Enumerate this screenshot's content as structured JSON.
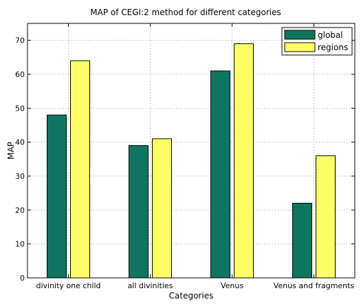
{
  "chart_data": {
    "type": "bar",
    "title": "MAP of CEGI:2 method for different categories",
    "xlabel": "Categories",
    "ylabel": "MAP",
    "categories": [
      "divinity one child",
      "all divinities",
      "Venus",
      "Venus and fragments"
    ],
    "series": [
      {
        "name": "global",
        "values": [
          48,
          39,
          61,
          22
        ],
        "color": "#0f7560"
      },
      {
        "name": "regions",
        "values": [
          64,
          41,
          69,
          36
        ],
        "color": "#ffff66"
      }
    ],
    "ylim": [
      0,
      75
    ],
    "yticks": [
      0,
      10,
      20,
      30,
      40,
      50,
      60,
      70
    ],
    "grid": true,
    "legend_position": "top-right"
  }
}
